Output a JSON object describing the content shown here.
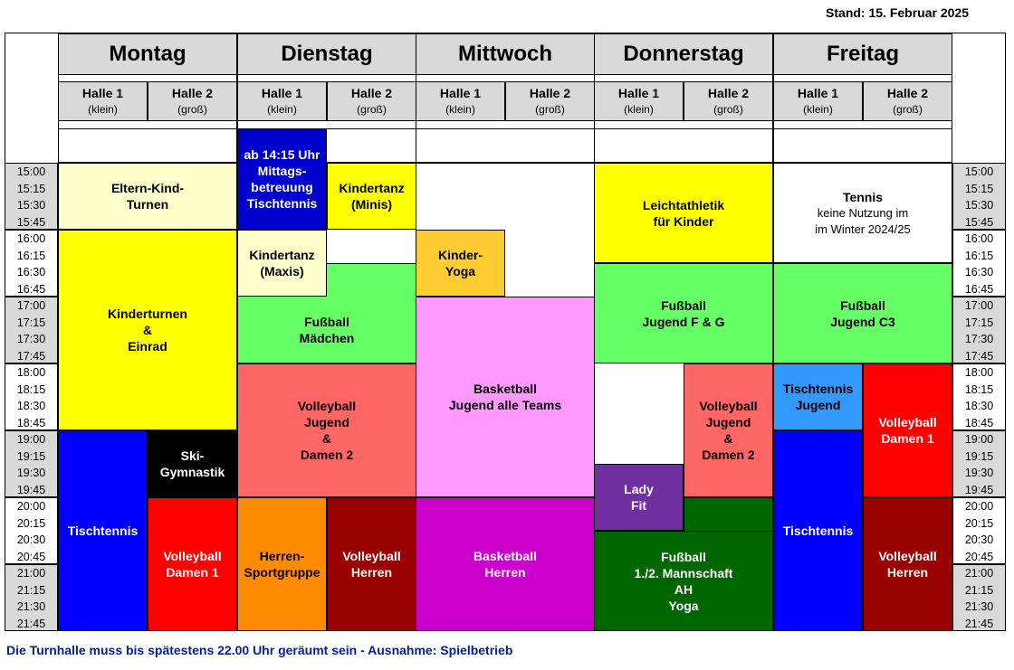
{
  "stand": "Stand: 15. Februar 2025",
  "days": [
    "Montag",
    "Dienstag",
    "Mittwoch",
    "Donnerstag",
    "Freitag"
  ],
  "hall_labels": {
    "h1": "Halle 1",
    "h1_sub": "(klein)",
    "h2": "Halle 2",
    "h2_sub": "(groß)"
  },
  "time_groups": [
    [
      "15:00",
      "15:15",
      "15:30",
      "15:45"
    ],
    [
      "16:00",
      "16:15",
      "16:30",
      "16:45"
    ],
    [
      "17:00",
      "17:15",
      "17:30",
      "17:45"
    ],
    [
      "18:00",
      "18:15",
      "18:30",
      "18:45"
    ],
    [
      "19:00",
      "19:15",
      "19:30",
      "19:45"
    ],
    [
      "20:00",
      "20:15",
      "20:30",
      "20:45"
    ],
    [
      "21:00",
      "21:15",
      "21:30",
      "21:45"
    ]
  ],
  "colors": {
    "shade": "#d9d9d9"
  },
  "blocks": [
    {
      "day": 0,
      "col": "both",
      "start": 0,
      "end": 4,
      "bg": "#ffffcc",
      "fg": "#000",
      "text": "Eltern-Kind-\nTurnen"
    },
    {
      "day": 0,
      "col": "both",
      "start": 4,
      "end": 16,
      "bg": "#ffff00",
      "fg": "#000",
      "text": "Kinderturnen\n&\nEinrad"
    },
    {
      "day": 0,
      "col": "h1",
      "start": 16,
      "end": 28,
      "bg": "#0000ff",
      "fg": "#fff",
      "text": "Tischtennis"
    },
    {
      "day": 0,
      "col": "h2",
      "start": 16,
      "end": 20,
      "bg": "#000000",
      "fg": "#fff",
      "text": "Ski-\nGymnastik"
    },
    {
      "day": 0,
      "col": "h2",
      "start": 20,
      "end": 28,
      "bg": "#ff0000",
      "fg": "#fff",
      "text": "Volleyball\nDamen 1"
    },
    {
      "day": 1,
      "col": "h1",
      "start": -2,
      "end": 4,
      "bg": "#0000cc",
      "fg": "#fff",
      "text": "ab 14:15 Uhr\nMittags-\nbetreuung\nTischtennis"
    },
    {
      "day": 1,
      "col": "h2",
      "start": 0,
      "end": 4,
      "bg": "#ffff00",
      "fg": "#000",
      "text": "Kindertanz\n(Minis)"
    },
    {
      "day": 1,
      "col": "h1",
      "start": 4,
      "end": 8,
      "bg": "#ffffcc",
      "fg": "#000",
      "text": "Kindertanz\n(Maxis)"
    },
    {
      "day": 1,
      "col": "both",
      "start": 6,
      "end": 12,
      "bg": "#66ff66",
      "fg": "#000",
      "text": "Fußball\nMädchen",
      "clip": "h1from8"
    },
    {
      "day": 1,
      "col": "both",
      "start": 12,
      "end": 20,
      "bg": "#ff6666",
      "fg": "#000",
      "text": "Volleyball\nJugend\n&\nDamen 2"
    },
    {
      "day": 1,
      "col": "h1",
      "start": 20,
      "end": 28,
      "bg": "#ff8c00",
      "fg": "#000",
      "text": "Herren-\nSportgruppe"
    },
    {
      "day": 1,
      "col": "h2",
      "start": 20,
      "end": 28,
      "bg": "#990000",
      "fg": "#fff",
      "text": "Volleyball\nHerren"
    },
    {
      "day": 2,
      "col": "h1",
      "start": 4,
      "end": 8,
      "bg": "#ffcc33",
      "fg": "#000",
      "text": "Kinder-\nYoga"
    },
    {
      "day": 2,
      "col": "both",
      "start": 8,
      "end": 20,
      "bg": "#ff99ff",
      "fg": "#000",
      "text": "Basketball\nJugend alle Teams"
    },
    {
      "day": 2,
      "col": "both",
      "start": 20,
      "end": 28,
      "bg": "#cc00cc",
      "fg": "#fff",
      "text": "Basketball\nHerren"
    },
    {
      "day": 3,
      "col": "both",
      "start": 0,
      "end": 6,
      "bg": "#ffff00",
      "fg": "#000",
      "text": "Leichtathletik\nfür Kinder"
    },
    {
      "day": 3,
      "col": "both",
      "start": 6,
      "end": 12,
      "bg": "#66ff66",
      "fg": "#000",
      "text": "Fußball\nJugend F & G"
    },
    {
      "day": 3,
      "col": "h1",
      "start": 18,
      "end": 22,
      "bg": "#7030a0",
      "fg": "#fff",
      "text": "Lady\nFit"
    },
    {
      "day": 3,
      "col": "h2",
      "start": 12,
      "end": 20,
      "bg": "#ff6666",
      "fg": "#000",
      "text": "Volleyball\nJugend\n&\nDamen 2"
    },
    {
      "day": 3,
      "col": "both",
      "start": 22,
      "end": 28,
      "bg": "#006600",
      "fg": "#fff",
      "text": "Fußball\n1./2. Mannschaft\nAH\nYoga",
      "clip": "h2from20"
    },
    {
      "day": 4,
      "col": "both",
      "start": 0,
      "end": 6,
      "bg": "#ffffff",
      "fg": "#000",
      "text": "Tennis",
      "sub": "keine Nutzung im\nim Winter 2024/25"
    },
    {
      "day": 4,
      "col": "both",
      "start": 6,
      "end": 12,
      "bg": "#66ff66",
      "fg": "#000",
      "text": "Fußball\nJugend C3"
    },
    {
      "day": 4,
      "col": "h1",
      "start": 12,
      "end": 16,
      "bg": "#3399ff",
      "fg": "#000",
      "text": "Tischtennis\nJugend"
    },
    {
      "day": 4,
      "col": "h2",
      "start": 12,
      "end": 20,
      "bg": "#ff0000",
      "fg": "#fff",
      "text": "Volleyball\nDamen 1"
    },
    {
      "day": 4,
      "col": "h1",
      "start": 16,
      "end": 28,
      "bg": "#0000ff",
      "fg": "#fff",
      "text": "Tischtennis"
    },
    {
      "day": 4,
      "col": "h2",
      "start": 20,
      "end": 28,
      "bg": "#990000",
      "fg": "#fff",
      "text": "Volleyball\nHerren"
    }
  ],
  "note": "Die Turnhalle muss bis spätestens 22.00 Uhr geräumt sein - Ausnahme: Spielbetrieb"
}
